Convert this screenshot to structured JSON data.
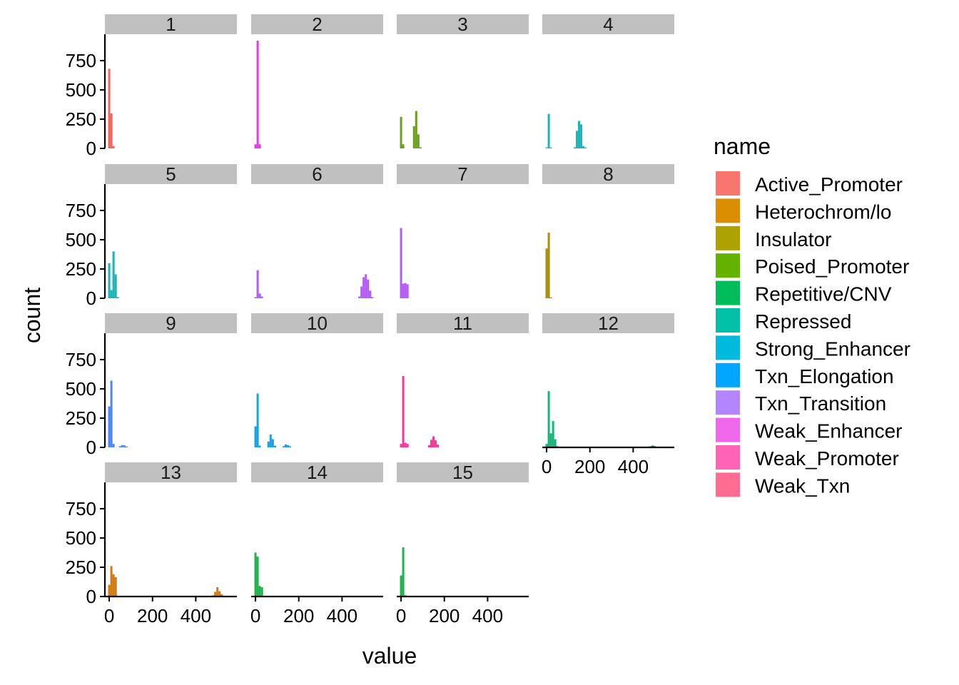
{
  "chart_data": {
    "type": "bar",
    "title": "",
    "xlabel": "value",
    "ylabel": "count",
    "xlim": [
      -20,
      590
    ],
    "ylim": [
      0,
      975
    ],
    "x_ticks": [
      0,
      200,
      400
    ],
    "y_ticks": [
      0,
      250,
      500,
      750
    ],
    "bin_width": 10,
    "facet_layout": {
      "columns": 4,
      "rows": 4
    },
    "legend": {
      "title": "name",
      "position": "right",
      "entries": [
        {
          "label": "Active_Promoter",
          "color": "#F8766D"
        },
        {
          "label": "Heterochrom/lo",
          "color": "#DB8E00"
        },
        {
          "label": "Insulator",
          "color": "#AEA200"
        },
        {
          "label": "Poised_Promoter",
          "color": "#64B200"
        },
        {
          "label": "Repetitive/CNV",
          "color": "#00BD5C"
        },
        {
          "label": "Repressed",
          "color": "#00C1A7"
        },
        {
          "label": "Strong_Enhancer",
          "color": "#00BADE"
        },
        {
          "label": "Txn_Elongation",
          "color": "#00A6FF"
        },
        {
          "label": "Txn_Transition",
          "color": "#B385FF"
        },
        {
          "label": "Weak_Enhancer",
          "color": "#EF67EB"
        },
        {
          "label": "Weak_Promoter",
          "color": "#FF63B6"
        },
        {
          "label": "Weak_Txn",
          "color": "#FF6C91"
        }
      ]
    },
    "facets": [
      {
        "label": "1",
        "series": "Active_Promoter",
        "color": "#F5645D",
        "bins": [
          [
            0,
            680
          ],
          [
            10,
            300
          ],
          [
            20,
            20
          ]
        ]
      },
      {
        "label": "2",
        "series": "Weak_Promoter",
        "color": "#E53AE6",
        "bins": [
          [
            0,
            35
          ],
          [
            10,
            920
          ],
          [
            20,
            35
          ]
        ]
      },
      {
        "label": "3",
        "series": "Poised_Promoter",
        "color": "#6BA01A",
        "bins": [
          [
            0,
            270
          ],
          [
            10,
            35
          ],
          [
            60,
            190
          ],
          [
            70,
            320
          ],
          [
            80,
            120
          ],
          [
            90,
            10
          ]
        ]
      },
      {
        "label": "4",
        "series": "Strong_Enhancer",
        "color": "#1DB3B7",
        "bins": [
          [
            0,
            8
          ],
          [
            10,
            295
          ],
          [
            20,
            8
          ],
          [
            130,
            10
          ],
          [
            140,
            150
          ],
          [
            150,
            235
          ],
          [
            160,
            205
          ],
          [
            170,
            20
          ],
          [
            180,
            8
          ]
        ]
      },
      {
        "label": "5",
        "series": "Strong_Enhancer",
        "color": "#1DB3B7",
        "bins": [
          [
            0,
            300
          ],
          [
            10,
            70
          ],
          [
            20,
            400
          ],
          [
            30,
            205
          ],
          [
            40,
            10
          ]
        ]
      },
      {
        "label": "6",
        "series": "Weak_Enhancer",
        "color": "#B35BF4",
        "bins": [
          [
            0,
            10
          ],
          [
            10,
            240
          ],
          [
            20,
            40
          ],
          [
            30,
            15
          ],
          [
            480,
            15
          ],
          [
            490,
            100
          ],
          [
            500,
            180
          ],
          [
            510,
            205
          ],
          [
            520,
            160
          ],
          [
            530,
            65
          ],
          [
            540,
            10
          ]
        ]
      },
      {
        "label": "7",
        "series": "Weak_Enhancer",
        "color": "#B35BF4",
        "bins": [
          [
            0,
            600
          ],
          [
            10,
            125
          ],
          [
            20,
            130
          ],
          [
            30,
            120
          ]
        ]
      },
      {
        "label": "8",
        "series": "Insulator",
        "color": "#A88D0F",
        "bins": [
          [
            0,
            425
          ],
          [
            10,
            560
          ],
          [
            20,
            8
          ]
        ]
      },
      {
        "label": "9",
        "series": "Txn_Transition",
        "color": "#4F86F7",
        "bins": [
          [
            0,
            350
          ],
          [
            10,
            570
          ],
          [
            20,
            30
          ],
          [
            50,
            10
          ],
          [
            60,
            20
          ],
          [
            70,
            18
          ],
          [
            80,
            8
          ]
        ]
      },
      {
        "label": "10",
        "series": "Txn_Elongation",
        "color": "#16A2E3",
        "bins": [
          [
            0,
            180
          ],
          [
            10,
            460
          ],
          [
            20,
            15
          ],
          [
            60,
            50
          ],
          [
            70,
            110
          ],
          [
            80,
            70
          ],
          [
            90,
            15
          ],
          [
            130,
            10
          ],
          [
            140,
            25
          ],
          [
            150,
            20
          ],
          [
            160,
            10
          ]
        ]
      },
      {
        "label": "11",
        "series": "Weak_Txn",
        "color": "#F23B95",
        "bins": [
          [
            0,
            30
          ],
          [
            10,
            610
          ],
          [
            20,
            40
          ],
          [
            30,
            30
          ],
          [
            130,
            20
          ],
          [
            140,
            65
          ],
          [
            150,
            95
          ],
          [
            160,
            60
          ],
          [
            170,
            25
          ]
        ]
      },
      {
        "label": "12",
        "series": "Repressed",
        "color": "#1AB47B",
        "bins": [
          [
            0,
            30
          ],
          [
            10,
            480
          ],
          [
            20,
            120
          ],
          [
            30,
            225
          ],
          [
            40,
            70
          ],
          [
            50,
            10
          ],
          [
            480,
            10
          ],
          [
            490,
            18
          ],
          [
            500,
            12
          ],
          [
            510,
            6
          ]
        ]
      },
      {
        "label": "13",
        "series": "Heterochrom/lo",
        "color": "#D17A12",
        "bins": [
          [
            0,
            100
          ],
          [
            10,
            260
          ],
          [
            20,
            190
          ],
          [
            30,
            165
          ],
          [
            480,
            10
          ],
          [
            490,
            40
          ],
          [
            500,
            80
          ],
          [
            510,
            45
          ],
          [
            520,
            20
          ]
        ]
      },
      {
        "label": "14",
        "series": "Repetitive/CNV",
        "color": "#22B14C",
        "bins": [
          [
            0,
            375
          ],
          [
            10,
            340
          ],
          [
            20,
            90
          ],
          [
            30,
            80
          ]
        ]
      },
      {
        "label": "15",
        "series": "Repetitive/CNV",
        "color": "#22B14C",
        "bins": [
          [
            0,
            180
          ],
          [
            10,
            420
          ],
          [
            20,
            10
          ]
        ]
      }
    ]
  }
}
